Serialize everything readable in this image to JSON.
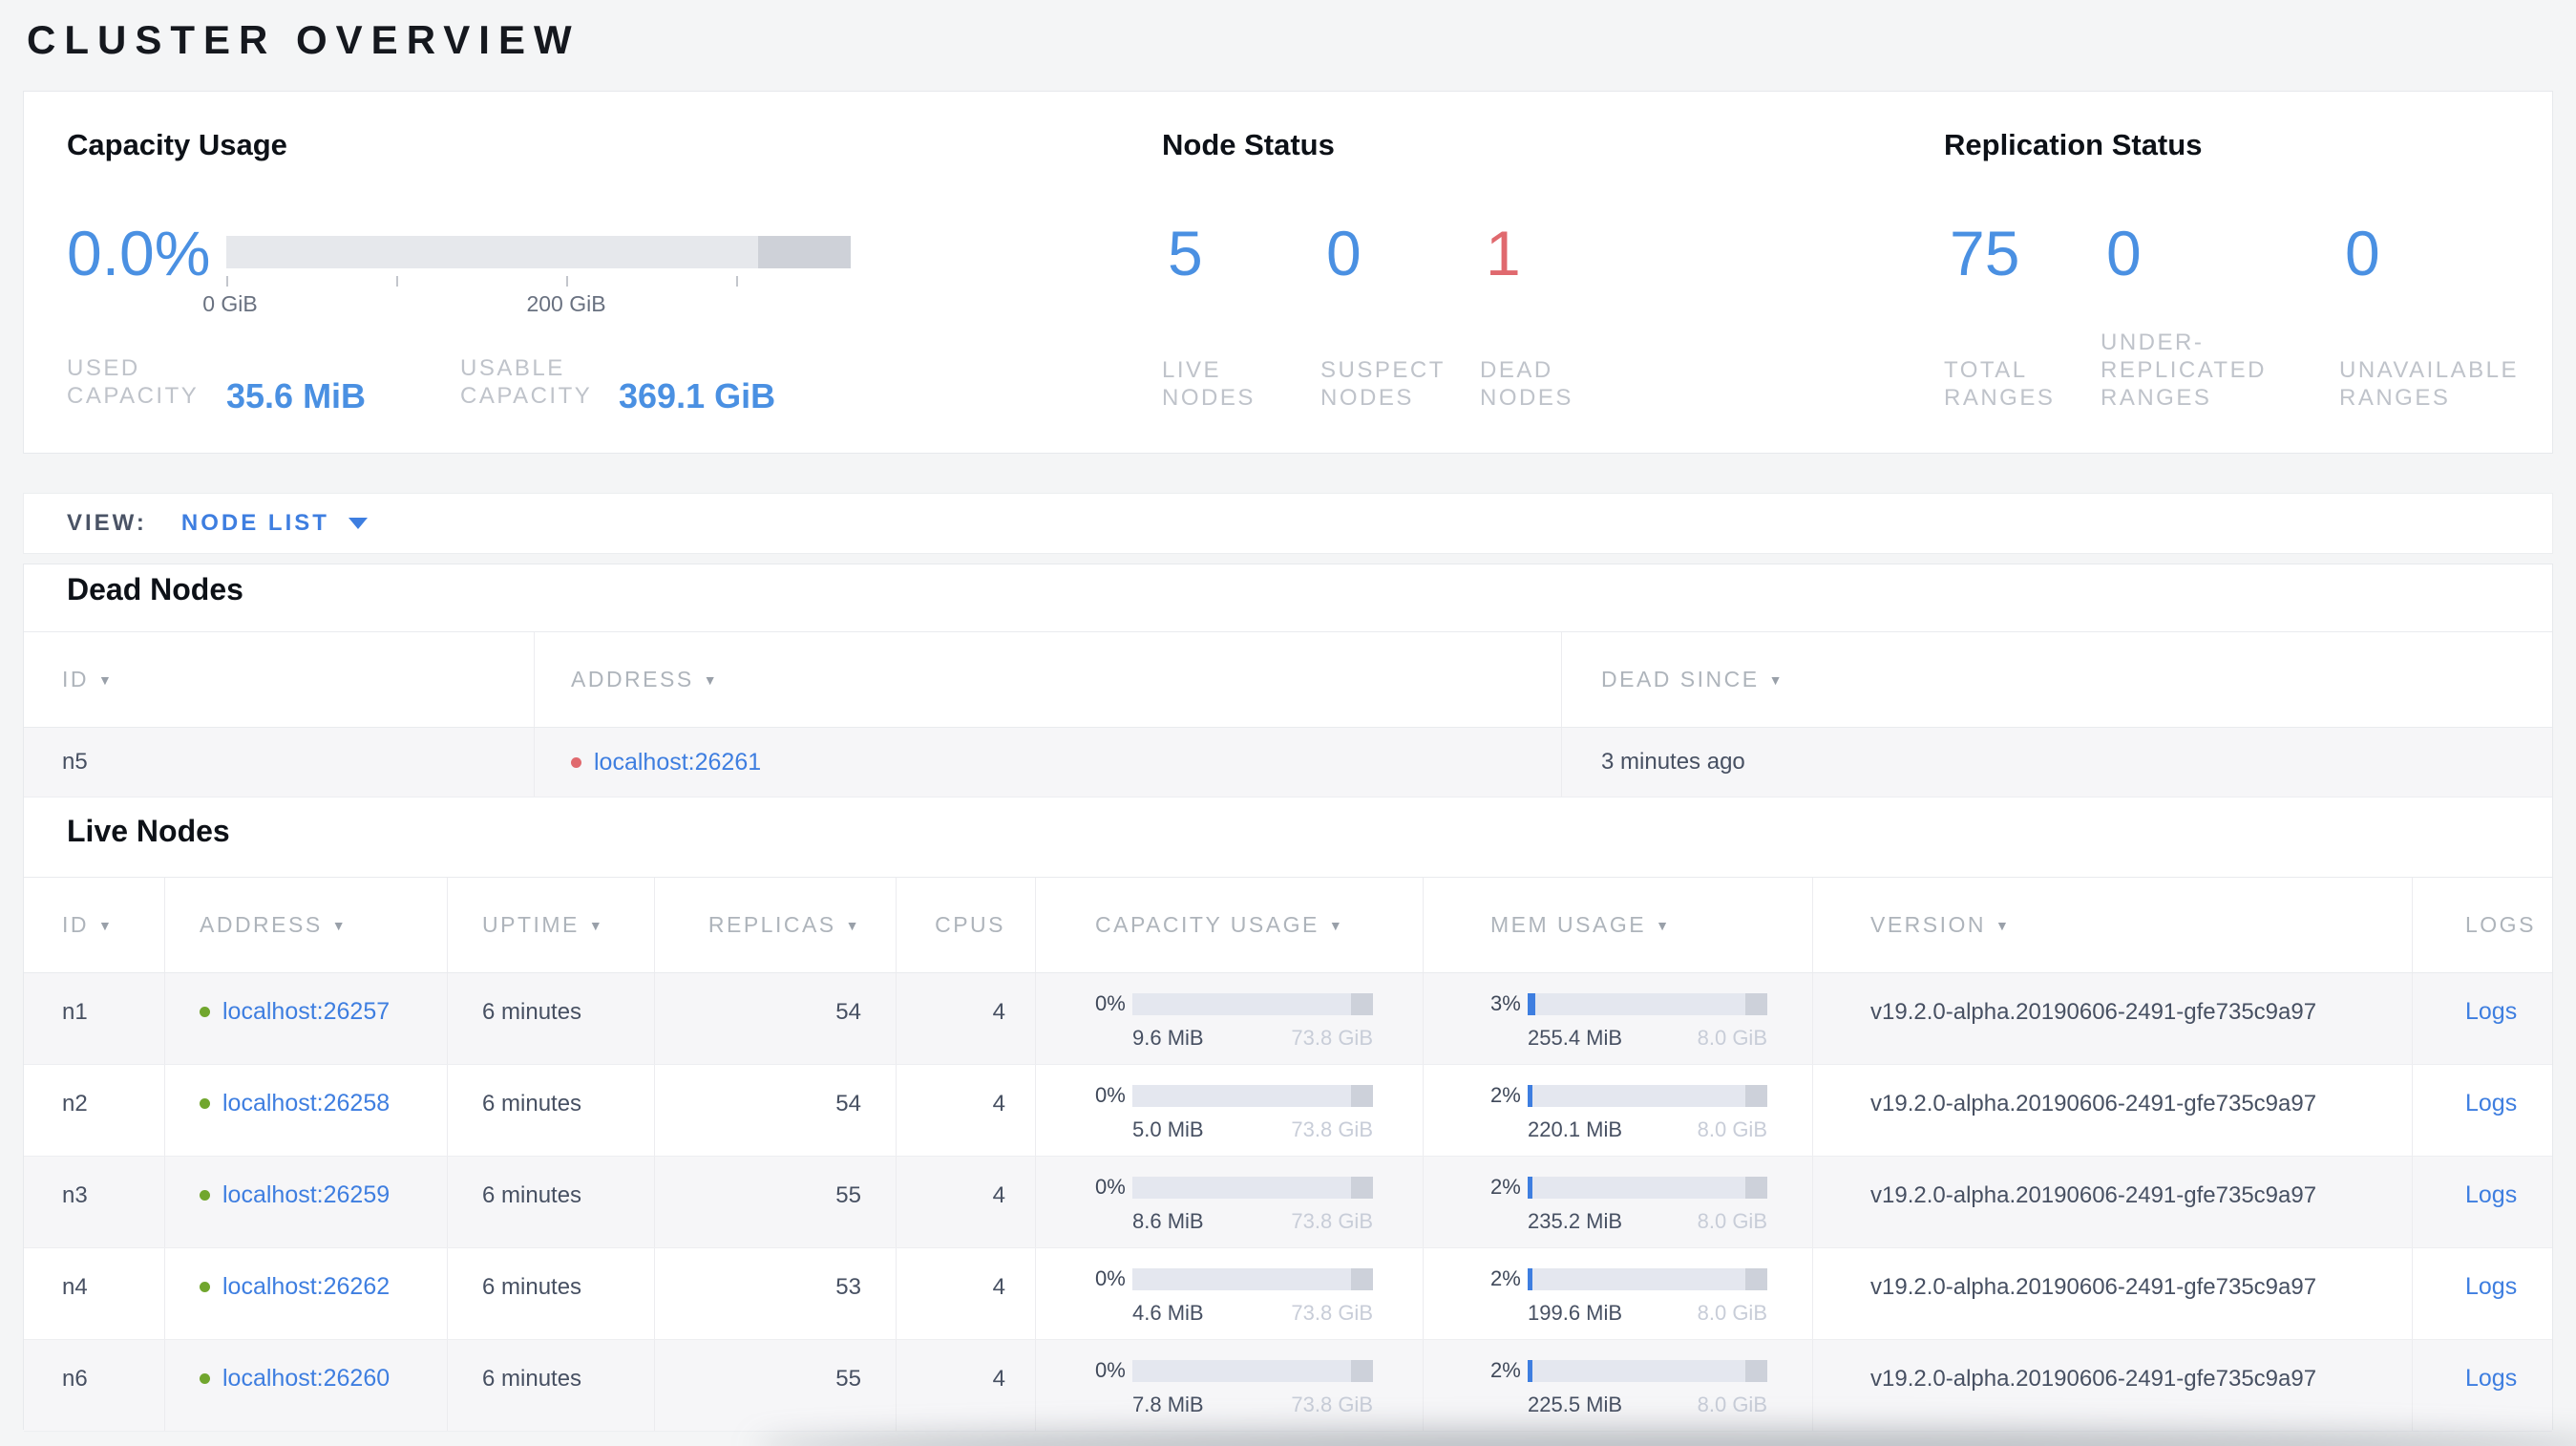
{
  "title": "CLUSTER OVERVIEW",
  "colors": {
    "accent_blue": "#3e7ee0",
    "number_blue": "#4a90e2",
    "danger_red": "#e0696e",
    "live_green": "#71a62e"
  },
  "summary": {
    "capacity_usage": {
      "heading": "Capacity Usage",
      "used_percent_label": "0.0%",
      "used_percent": 0,
      "axis_tick_labels": [
        "0 GiB",
        "200 GiB"
      ],
      "stats": [
        {
          "label": "USED\nCAPACITY",
          "value": "35.6 MiB"
        },
        {
          "label": "USABLE\nCAPACITY",
          "value": "369.1 GiB"
        }
      ]
    },
    "node_status": {
      "heading": "Node Status",
      "stats": [
        {
          "value": "5",
          "label": "LIVE\nNODES",
          "tone": "blue"
        },
        {
          "value": "0",
          "label": "SUSPECT\nNODES",
          "tone": "blue"
        },
        {
          "value": "1",
          "label": "DEAD\nNODES",
          "tone": "red"
        }
      ]
    },
    "replication_status": {
      "heading": "Replication Status",
      "stats": [
        {
          "value": "75",
          "label": "TOTAL\nRANGES",
          "tone": "blue"
        },
        {
          "value": "0",
          "label": "UNDER-\nREPLICATED\nRANGES",
          "tone": "blue"
        },
        {
          "value": "0",
          "label": "UNAVAILABLE\nRANGES",
          "tone": "blue"
        }
      ]
    }
  },
  "view_bar": {
    "label": "VIEW:",
    "selected": "NODE LIST"
  },
  "dead_nodes": {
    "heading": "Dead Nodes",
    "columns": [
      {
        "label": "ID"
      },
      {
        "label": "ADDRESS"
      },
      {
        "label": "DEAD SINCE"
      }
    ],
    "rows": [
      {
        "id": "n5",
        "address": "localhost:26261",
        "dead_since": "3 minutes ago"
      }
    ]
  },
  "live_nodes": {
    "heading": "Live Nodes",
    "columns": [
      {
        "label": "ID"
      },
      {
        "label": "ADDRESS"
      },
      {
        "label": "UPTIME"
      },
      {
        "label": "REPLICAS"
      },
      {
        "label": "CPUS"
      },
      {
        "label": "CAPACITY USAGE"
      },
      {
        "label": "MEM USAGE"
      },
      {
        "label": "VERSION"
      },
      {
        "label": "LOGS"
      }
    ],
    "rows": [
      {
        "id": "n1",
        "address": "localhost:26257",
        "uptime": "6 minutes",
        "replicas": "54",
        "cpus": "4",
        "capacity_percent_label": "0%",
        "capacity_percent": 0,
        "capacity_used": "9.6 MiB",
        "capacity_total": "73.8 GiB",
        "mem_percent_label": "3%",
        "mem_percent": 3,
        "mem_used": "255.4 MiB",
        "mem_total": "8.0 GiB",
        "version": "v19.2.0-alpha.20190606-2491-gfe735c9a97",
        "logs_label": "Logs"
      },
      {
        "id": "n2",
        "address": "localhost:26258",
        "uptime": "6 minutes",
        "replicas": "54",
        "cpus": "4",
        "capacity_percent_label": "0%",
        "capacity_percent": 0,
        "capacity_used": "5.0 MiB",
        "capacity_total": "73.8 GiB",
        "mem_percent_label": "2%",
        "mem_percent": 2,
        "mem_used": "220.1 MiB",
        "mem_total": "8.0 GiB",
        "version": "v19.2.0-alpha.20190606-2491-gfe735c9a97",
        "logs_label": "Logs"
      },
      {
        "id": "n3",
        "address": "localhost:26259",
        "uptime": "6 minutes",
        "replicas": "55",
        "cpus": "4",
        "capacity_percent_label": "0%",
        "capacity_percent": 0,
        "capacity_used": "8.6 MiB",
        "capacity_total": "73.8 GiB",
        "mem_percent_label": "2%",
        "mem_percent": 2,
        "mem_used": "235.2 MiB",
        "mem_total": "8.0 GiB",
        "version": "v19.2.0-alpha.20190606-2491-gfe735c9a97",
        "logs_label": "Logs"
      },
      {
        "id": "n4",
        "address": "localhost:26262",
        "uptime": "6 minutes",
        "replicas": "53",
        "cpus": "4",
        "capacity_percent_label": "0%",
        "capacity_percent": 0,
        "capacity_used": "4.6 MiB",
        "capacity_total": "73.8 GiB",
        "mem_percent_label": "2%",
        "mem_percent": 2,
        "mem_used": "199.6 MiB",
        "mem_total": "8.0 GiB",
        "version": "v19.2.0-alpha.20190606-2491-gfe735c9a97",
        "logs_label": "Logs"
      },
      {
        "id": "n6",
        "address": "localhost:26260",
        "uptime": "6 minutes",
        "replicas": "55",
        "cpus": "4",
        "capacity_percent_label": "0%",
        "capacity_percent": 0,
        "capacity_used": "7.8 MiB",
        "capacity_total": "73.8 GiB",
        "mem_percent_label": "2%",
        "mem_percent": 2,
        "mem_used": "225.5 MiB",
        "mem_total": "8.0 GiB",
        "version": "v19.2.0-alpha.20190606-2491-gfe735c9a97",
        "logs_label": "Logs"
      }
    ]
  }
}
